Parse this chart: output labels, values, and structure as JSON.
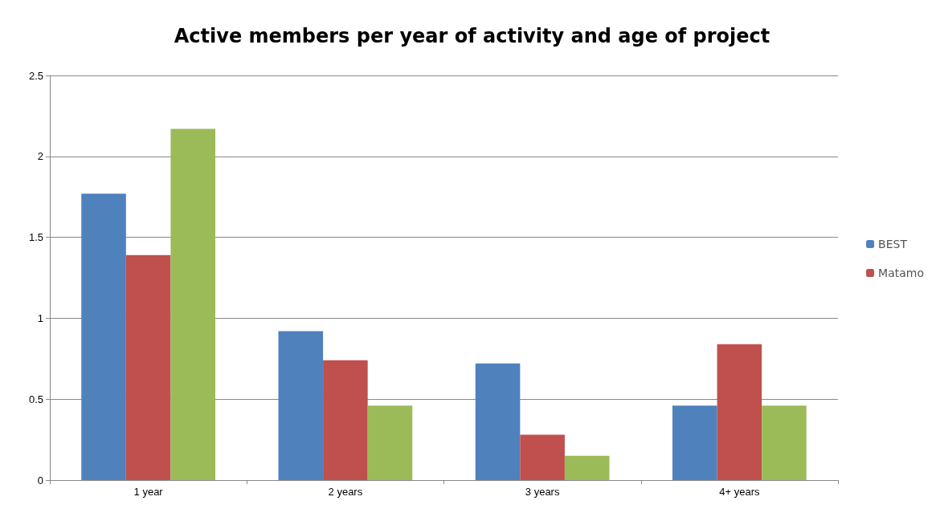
{
  "chart_data": {
    "type": "bar",
    "title": "Active members per year of activity and age of project",
    "categories": [
      "1 year",
      "2 years",
      "3 years",
      "4+ years"
    ],
    "series": [
      {
        "name": "BEST",
        "color": "#4f81bd",
        "values": [
          1.77,
          0.92,
          0.72,
          0.46
        ]
      },
      {
        "name": "Matamo",
        "color": "#c0504d",
        "values": [
          1.39,
          0.74,
          0.28,
          0.84
        ]
      },
      {
        "color": "#9bbb59",
        "values": [
          2.17,
          0.46,
          0.15,
          0.46
        ]
      }
    ],
    "ylim": [
      0,
      2.5
    ],
    "yticks": [
      0,
      0.5,
      1,
      1.5,
      2,
      2.5
    ],
    "grid": "y",
    "legend": "right"
  }
}
